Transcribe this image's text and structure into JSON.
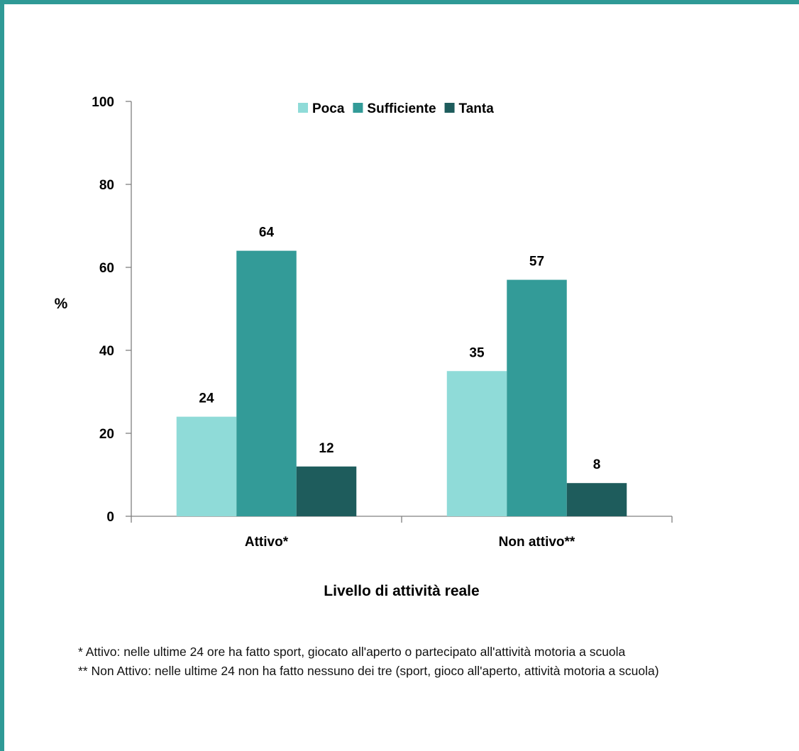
{
  "chart_data": {
    "type": "bar",
    "categories": [
      "Attivo*",
      "Non attivo**"
    ],
    "series": [
      {
        "name": "Poca",
        "values": [
          24,
          35
        ],
        "color": "#8fdbd8"
      },
      {
        "name": "Sufficiente",
        "values": [
          64,
          57
        ],
        "color": "#339b98"
      },
      {
        "name": "Tanta",
        "values": [
          12,
          8
        ],
        "color": "#1e5c5c"
      }
    ],
    "title": "",
    "xlabel": "Livello di attività reale",
    "ylabel": "%",
    "ylim": [
      0,
      100
    ],
    "yticks": [
      "0",
      "20",
      "40",
      "60",
      "80",
      "100"
    ],
    "grid": false,
    "legend_position": "top"
  },
  "footnotes": {
    "note1": "* Attivo: nelle ultime 24 ore ha fatto sport, giocato all'aperto o partecipato all'attività motoria a scuola",
    "note2": "** Non Attivo: nelle ultime 24 non ha fatto nessuno dei tre (sport, gioco all'aperto, attività motoria a scuola)"
  },
  "colors": {
    "frame": "#2f9a96",
    "axis": "#808080"
  }
}
